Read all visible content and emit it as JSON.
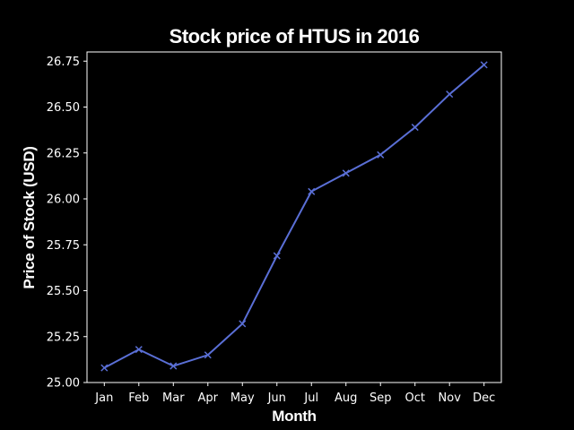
{
  "colors": {
    "background": "#000000",
    "foreground": "#ffffff",
    "series": "#5a6fd6"
  },
  "chart_data": {
    "type": "line",
    "title": "Stock price of HTUS in 2016",
    "xlabel": "Month",
    "ylabel": "Price of Stock (USD)",
    "categories": [
      "Jan",
      "Feb",
      "Mar",
      "Apr",
      "May",
      "Jun",
      "Jul",
      "Aug",
      "Sep",
      "Oct",
      "Nov",
      "Dec"
    ],
    "values": [
      25.08,
      25.18,
      25.09,
      25.15,
      25.32,
      25.69,
      26.04,
      26.14,
      26.24,
      26.39,
      26.57,
      26.73
    ],
    "marker": "x",
    "ylim": [
      25.0,
      26.8
    ],
    "yticks": [
      "25.00",
      "25.25",
      "25.50",
      "25.75",
      "26.00",
      "26.25",
      "26.50",
      "26.75"
    ],
    "grid": false,
    "legend": "none"
  }
}
